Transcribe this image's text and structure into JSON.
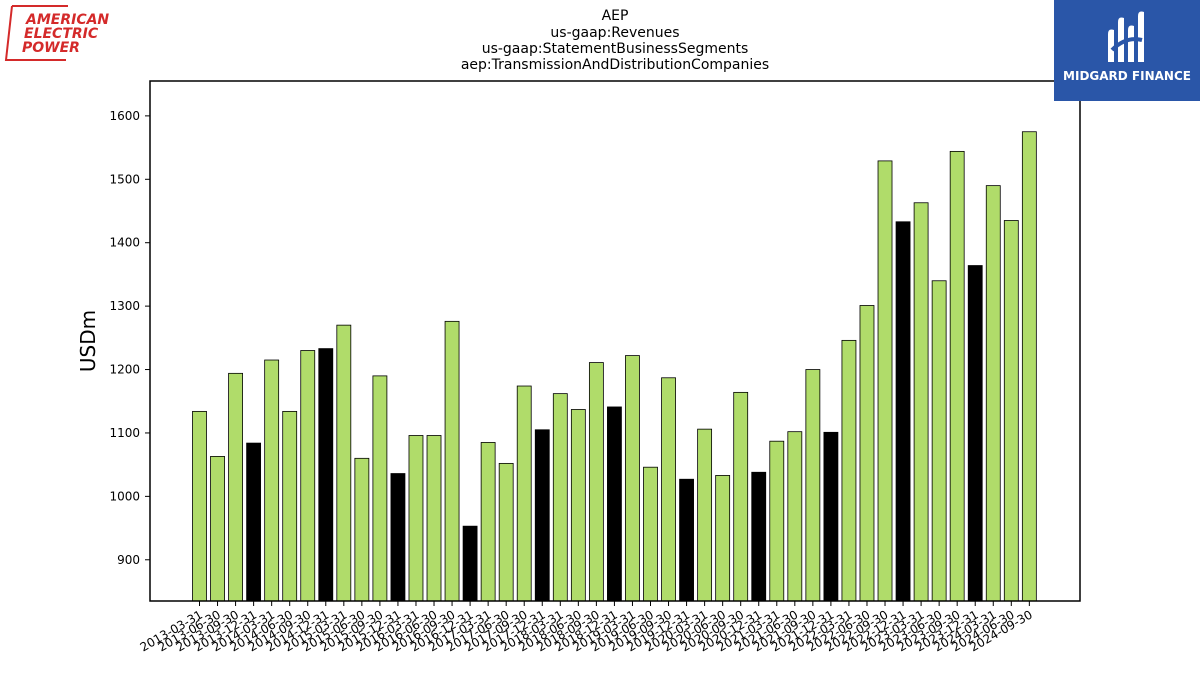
{
  "logos": {
    "left_text": [
      "AMERICAN",
      "ELECTRIC",
      "POWER"
    ],
    "right_text": "MIDGARD FINANCE"
  },
  "colors": {
    "green": "#b0dc6a",
    "black": "#000000",
    "brand_red": "#d42a2a",
    "brand_blue": "#2a56a8"
  },
  "chart_data": {
    "type": "bar",
    "title_lines": [
      "AEP",
      "us-gaap:Revenues",
      "us-gaap:StatementBusinessSegments",
      "aep:TransmissionAndDistributionCompanies"
    ],
    "ylabel": "USDm",
    "xlabel": "",
    "ylim": [
      835,
      1655
    ],
    "yticks": [
      900,
      1000,
      1100,
      1200,
      1300,
      1400,
      1500,
      1600
    ],
    "grid": false,
    "categories": [
      "2013-03-31",
      "2013-06-30",
      "2013-09-30",
      "2013-12-31",
      "2014-03-31",
      "2014-06-30",
      "2014-09-30",
      "2014-12-31",
      "2015-03-31",
      "2015-06-30",
      "2015-09-30",
      "2015-12-31",
      "2016-03-31",
      "2016-06-30",
      "2016-09-30",
      "2016-12-31",
      "2017-03-31",
      "2017-06-30",
      "2017-09-30",
      "2017-12-31",
      "2018-03-31",
      "2018-06-30",
      "2018-09-30",
      "2018-12-31",
      "2019-03-31",
      "2019-06-30",
      "2019-09-30",
      "2019-12-31",
      "2020-03-31",
      "2020-06-30",
      "2020-09-30",
      "2020-12-31",
      "2021-03-31",
      "2021-06-30",
      "2021-09-30",
      "2021-12-31",
      "2022-03-31",
      "2022-06-30",
      "2022-09-30",
      "2022-12-31",
      "2023-03-31",
      "2023-06-30",
      "2023-09-30",
      "2023-12-31",
      "2024-03-31",
      "2024-06-30",
      "2024-09-30"
    ],
    "values": [
      1134,
      1063,
      1194,
      1084,
      1215,
      1134,
      1230,
      1233,
      1270,
      1060,
      1190,
      1036,
      1096,
      1096,
      1276,
      953,
      1085,
      1052,
      1174,
      1105,
      1162,
      1137,
      1211,
      1141,
      1222,
      1046,
      1187,
      1027,
      1106,
      1033,
      1164,
      1038,
      1087,
      1102,
      1200,
      1101,
      1246,
      1301,
      1529,
      1433,
      1463,
      1340,
      1544,
      1364,
      1490,
      1435,
      1575
    ],
    "highlight": [
      false,
      false,
      false,
      true,
      false,
      false,
      false,
      true,
      false,
      false,
      false,
      true,
      false,
      false,
      false,
      true,
      false,
      false,
      false,
      true,
      false,
      false,
      false,
      true,
      false,
      false,
      false,
      true,
      false,
      false,
      false,
      true,
      false,
      false,
      false,
      true,
      false,
      false,
      false,
      true,
      false,
      false,
      false,
      true,
      false,
      false,
      false
    ]
  }
}
